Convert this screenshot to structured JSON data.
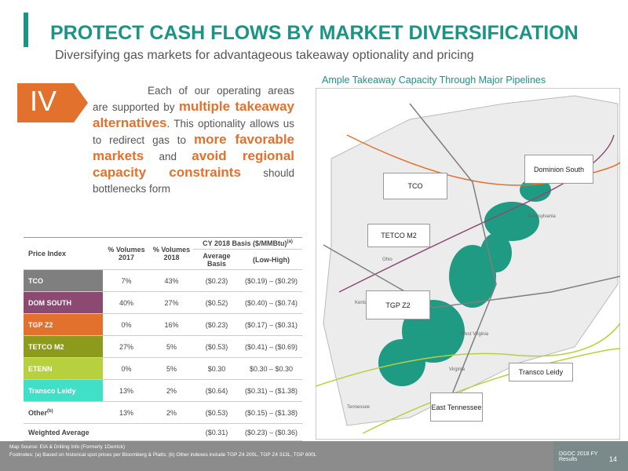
{
  "header": {
    "title": "PROTECT CASH FLOWS BY MARKET DIVERSIFICATION",
    "subtitle": "Diversifying gas markets for advantageous takeaway optionality and pricing"
  },
  "badge": "IV",
  "paragraph": [
    {
      "text": "Each of our operating areas are supported by ",
      "emphasis": false
    },
    {
      "text": "multiple takeaway alternatives",
      "emphasis": true
    },
    {
      "text": ". This optionality allows us to redirect gas to ",
      "emphasis": false
    },
    {
      "text": "more favorable markets",
      "emphasis": true
    },
    {
      "text": " and ",
      "emphasis": false
    },
    {
      "text": "avoid regional capacity constraints",
      "emphasis": true
    },
    {
      "text": " should bottlenecks form",
      "emphasis": false
    }
  ],
  "map": {
    "title": "Ample Takeaway Capacity Through Major Pipelines",
    "callouts": [
      "TCO",
      "Dominion South",
      "TETCO M2",
      "TGP Z2",
      "Transco Leidy",
      "East Tennessee"
    ],
    "places": [
      "Pennsylvania",
      "Ohio",
      "Kentucky",
      "West Virginia",
      "Virginia",
      "Tennessee"
    ]
  },
  "table": {
    "header": {
      "index": "Price Index",
      "vol2017": "% Volumes 2017",
      "vol2018": "% Volumes 2018",
      "basis": "CY 2018 Basis ($/MMBtu)",
      "basis_note": "(a)",
      "average": "Average Basis",
      "range": "(Low-High)"
    },
    "rows": [
      {
        "name": "TCO",
        "color": "#7f7f7f",
        "cells": [
          "7%",
          "43%",
          "($0.23)",
          "($0.19) – ($0.29)"
        ]
      },
      {
        "name": "DOM SOUTH",
        "color": "#8c4a73",
        "cells": [
          "40%",
          "27%",
          "($0.52)",
          "($0.40) – ($0.74)"
        ]
      },
      {
        "name": "TGP Z2",
        "color": "#e2712d",
        "cells": [
          "0%",
          "16%",
          "($0.23)",
          "($0.17) – ($0.31)"
        ]
      },
      {
        "name": "TETCO M2",
        "color": "#8d9b1d",
        "cells": [
          "27%",
          "5%",
          "($0.53)",
          "($0.41) – ($0.69)"
        ]
      },
      {
        "name": "ETENN",
        "color": "#b7d03d",
        "cells": [
          "0%",
          "5%",
          "$0.30",
          "$0.30 – $0.30"
        ]
      },
      {
        "name": "Transco Leidy",
        "color": "#40e0c8",
        "cells": [
          "13%",
          "2%",
          "($0.64)",
          "($0.31) – ($1.38)"
        ]
      },
      {
        "name": "Other",
        "note": "(b)",
        "cells": [
          "13%",
          "2%",
          "($0.53)",
          "($0.15) – ($1.38)"
        ]
      },
      {
        "name": "Weighted Average",
        "cells": [
          "",
          "",
          "($0.31)",
          "($0.23) – ($0.36)"
        ]
      }
    ]
  },
  "footnotes": [
    "Map Source: EIA & Drilling Info (Formerly 1Derrick)",
    "Footnotes: (a) Based on historical spot prices per Bloomberg & Platts; (b) Other indexes include TGP Z4 200L, TGP Z4 313L, TGP 800L"
  ],
  "footer": {
    "label": "DGOC 2018 FY Results",
    "page": "14"
  }
}
